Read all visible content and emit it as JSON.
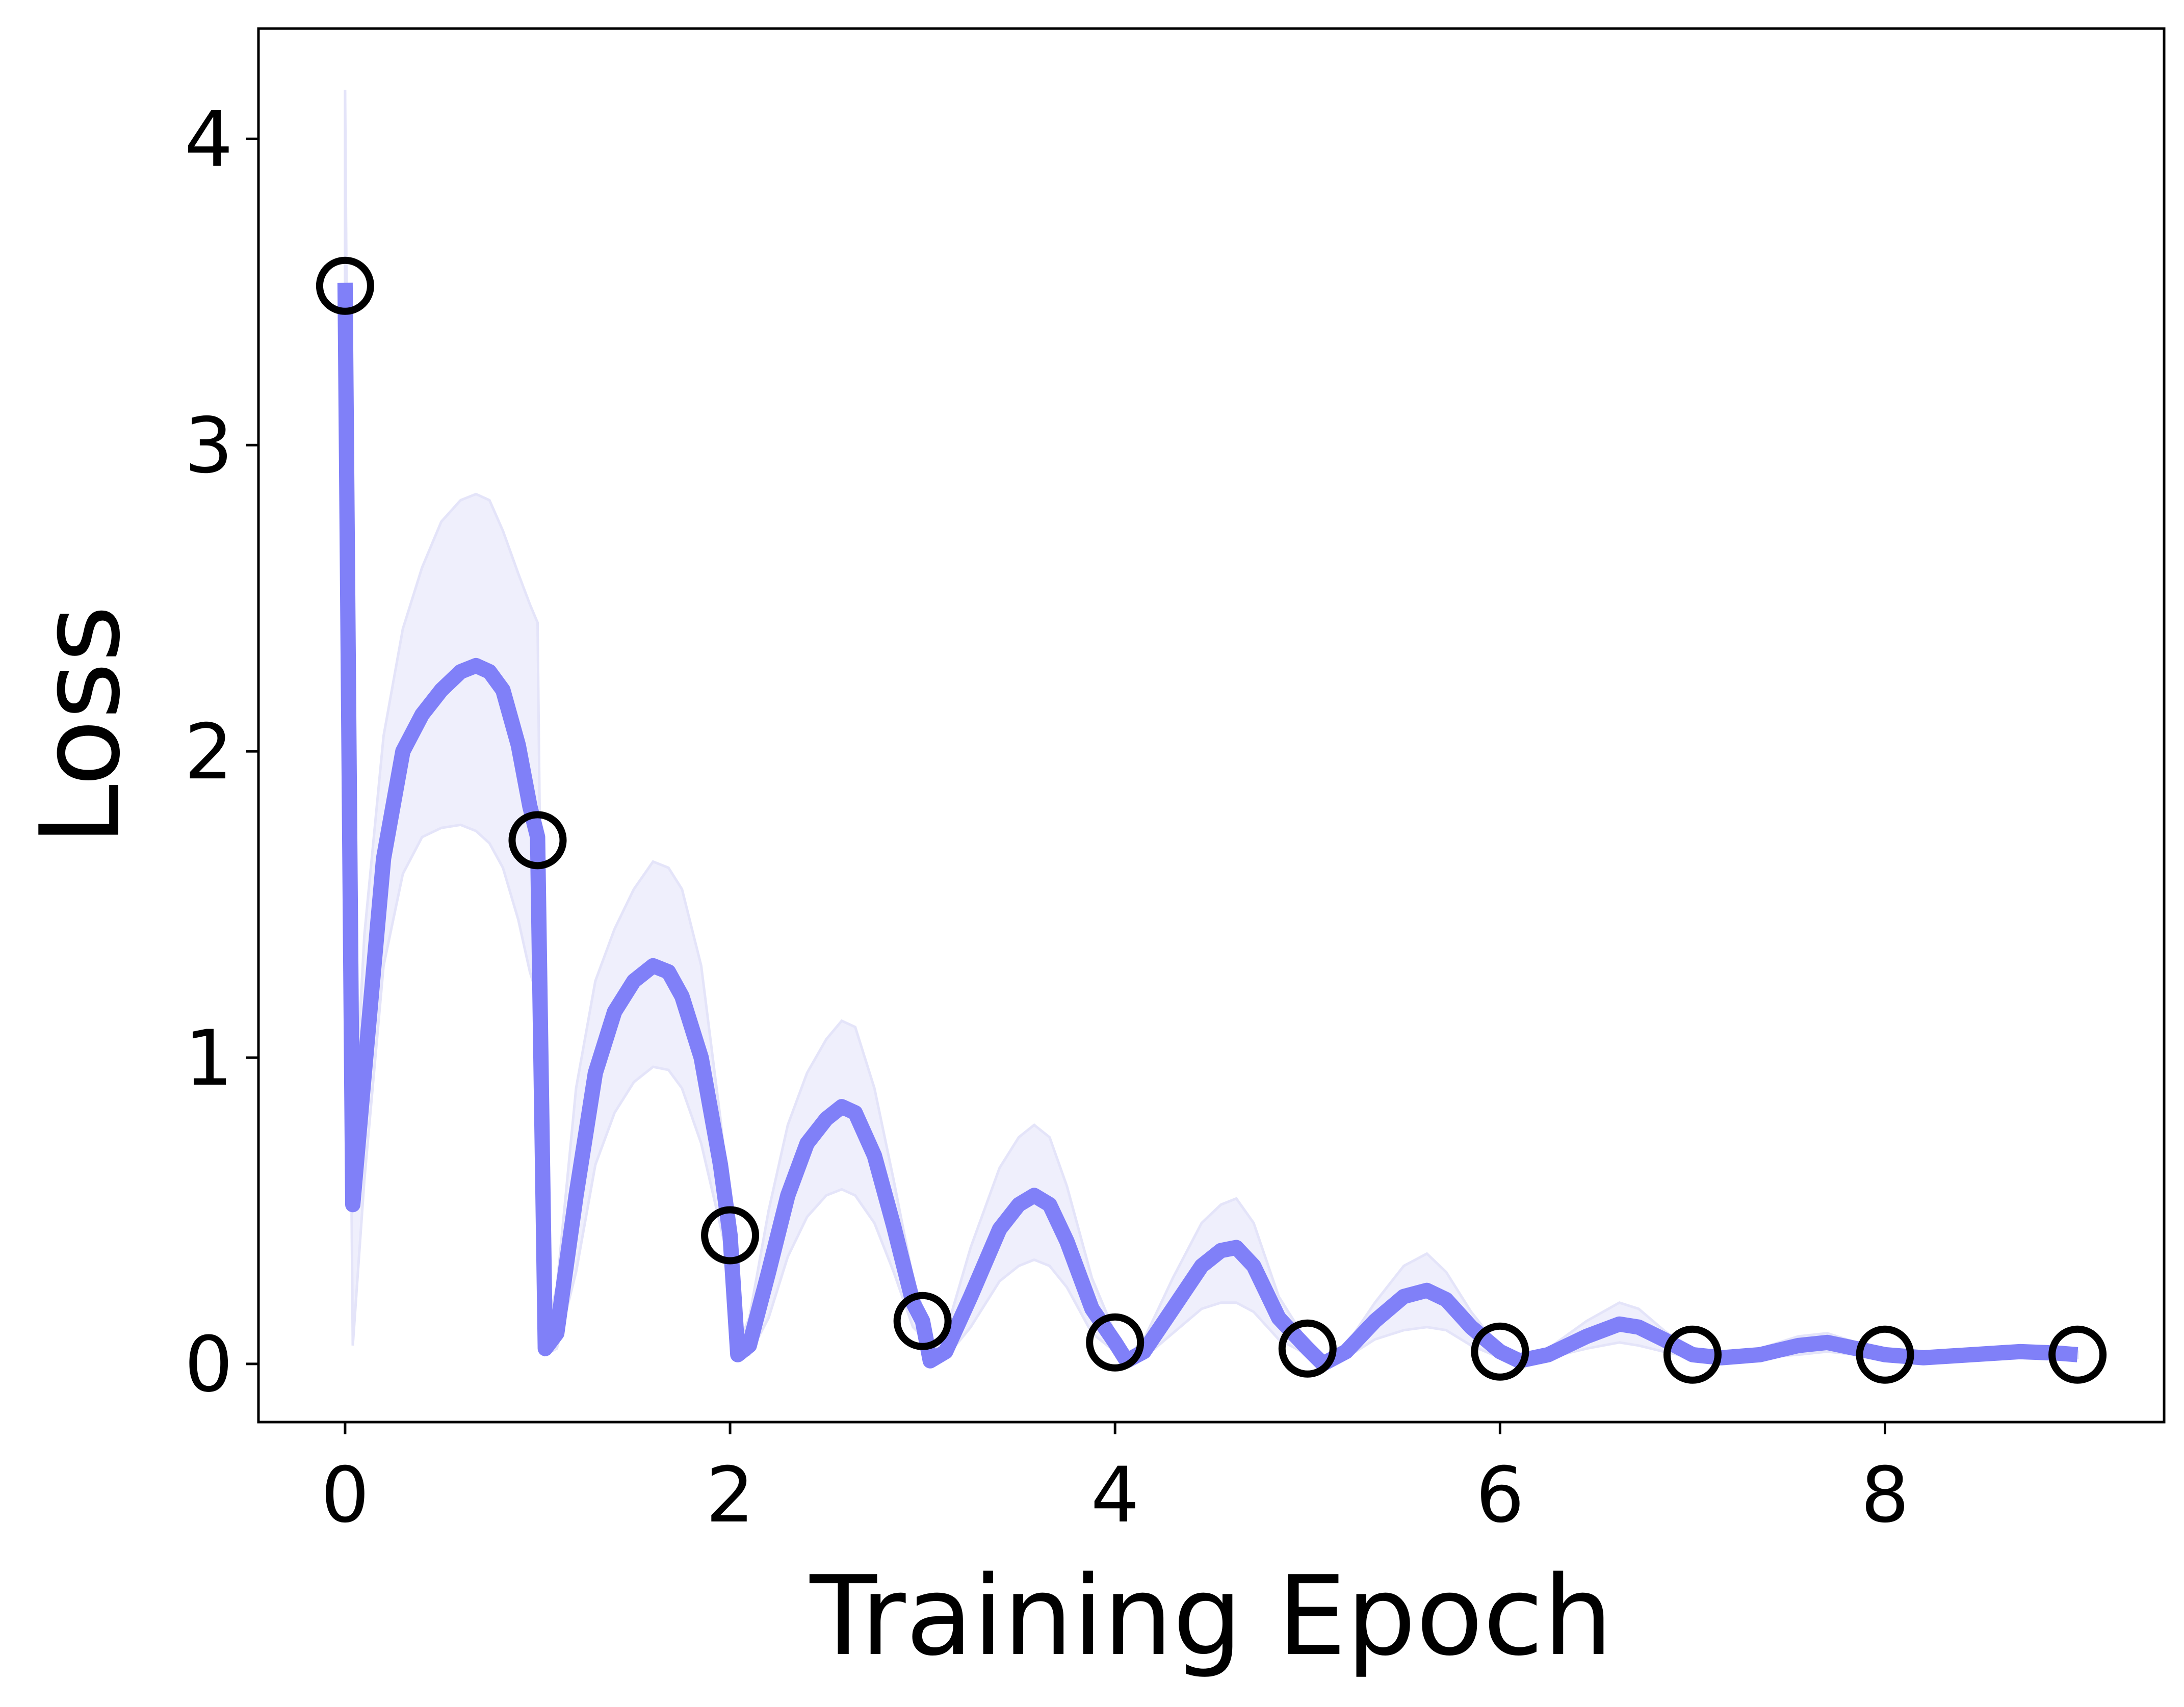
{
  "chart_data": {
    "type": "line",
    "title": "",
    "xlabel": "Training Epoch",
    "ylabel": "Loss",
    "xlim": [
      -0.45,
      9.45
    ],
    "ylim": [
      -0.19,
      4.36
    ],
    "xticks": [
      0,
      2,
      4,
      6,
      8
    ],
    "yticks": [
      0,
      1,
      2,
      3,
      4
    ],
    "grid": false,
    "legend": "none",
    "colors": {
      "line": "#8080f8",
      "band": "#efeffc",
      "band_edge": "#e4e4f9",
      "marker": "#000000"
    },
    "series": [
      {
        "values_mean": [
          [
            0.0,
            3.53
          ],
          [
            0.04,
            0.52
          ],
          [
            0.1,
            0.95
          ],
          [
            0.2,
            1.65
          ],
          [
            0.3,
            2.0
          ],
          [
            0.4,
            2.12
          ],
          [
            0.5,
            2.2
          ],
          [
            0.6,
            2.26
          ],
          [
            0.68,
            2.28
          ],
          [
            0.75,
            2.26
          ],
          [
            0.82,
            2.2
          ],
          [
            0.9,
            2.02
          ],
          [
            0.96,
            1.82
          ],
          [
            1.0,
            1.72
          ],
          [
            1.04,
            0.05
          ],
          [
            1.1,
            0.1
          ],
          [
            1.2,
            0.55
          ],
          [
            1.3,
            0.95
          ],
          [
            1.4,
            1.15
          ],
          [
            1.5,
            1.25
          ],
          [
            1.6,
            1.3
          ],
          [
            1.68,
            1.28
          ],
          [
            1.75,
            1.2
          ],
          [
            1.85,
            1.0
          ],
          [
            1.95,
            0.65
          ],
          [
            2.0,
            0.42
          ],
          [
            2.04,
            0.03
          ],
          [
            2.1,
            0.06
          ],
          [
            2.2,
            0.3
          ],
          [
            2.3,
            0.55
          ],
          [
            2.4,
            0.72
          ],
          [
            2.5,
            0.8
          ],
          [
            2.58,
            0.84
          ],
          [
            2.65,
            0.82
          ],
          [
            2.75,
            0.68
          ],
          [
            2.85,
            0.45
          ],
          [
            2.95,
            0.2
          ],
          [
            3.0,
            0.14
          ],
          [
            3.04,
            0.01
          ],
          [
            3.12,
            0.04
          ],
          [
            3.25,
            0.22
          ],
          [
            3.4,
            0.44
          ],
          [
            3.5,
            0.52
          ],
          [
            3.58,
            0.55
          ],
          [
            3.66,
            0.52
          ],
          [
            3.75,
            0.4
          ],
          [
            3.88,
            0.18
          ],
          [
            4.0,
            0.07
          ],
          [
            4.06,
            0.01
          ],
          [
            4.15,
            0.04
          ],
          [
            4.3,
            0.18
          ],
          [
            4.45,
            0.32
          ],
          [
            4.55,
            0.37
          ],
          [
            4.63,
            0.38
          ],
          [
            4.72,
            0.32
          ],
          [
            4.85,
            0.15
          ],
          [
            5.0,
            0.05
          ],
          [
            5.08,
            0.0
          ],
          [
            5.2,
            0.04
          ],
          [
            5.35,
            0.14
          ],
          [
            5.5,
            0.22
          ],
          [
            5.62,
            0.24
          ],
          [
            5.72,
            0.21
          ],
          [
            5.85,
            0.12
          ],
          [
            6.0,
            0.04
          ],
          [
            6.1,
            0.01
          ],
          [
            6.25,
            0.03
          ],
          [
            6.45,
            0.09
          ],
          [
            6.62,
            0.13
          ],
          [
            6.72,
            0.12
          ],
          [
            6.85,
            0.08
          ],
          [
            7.0,
            0.03
          ],
          [
            7.15,
            0.02
          ],
          [
            7.35,
            0.03
          ],
          [
            7.55,
            0.06
          ],
          [
            7.7,
            0.07
          ],
          [
            7.85,
            0.05
          ],
          [
            8.0,
            0.03
          ],
          [
            8.2,
            0.02
          ],
          [
            8.45,
            0.03
          ],
          [
            8.7,
            0.04
          ],
          [
            8.9,
            0.035
          ],
          [
            9.0,
            0.03
          ]
        ],
        "band_upper": [
          [
            0.0,
            4.16
          ],
          [
            0.04,
            0.7
          ],
          [
            0.1,
            1.4
          ],
          [
            0.2,
            2.05
          ],
          [
            0.3,
            2.4
          ],
          [
            0.4,
            2.6
          ],
          [
            0.5,
            2.75
          ],
          [
            0.6,
            2.82
          ],
          [
            0.68,
            2.84
          ],
          [
            0.75,
            2.82
          ],
          [
            0.82,
            2.72
          ],
          [
            0.9,
            2.58
          ],
          [
            0.96,
            2.48
          ],
          [
            1.0,
            2.42
          ],
          [
            1.04,
            0.1
          ],
          [
            1.1,
            0.25
          ],
          [
            1.2,
            0.9
          ],
          [
            1.3,
            1.25
          ],
          [
            1.4,
            1.42
          ],
          [
            1.5,
            1.55
          ],
          [
            1.6,
            1.64
          ],
          [
            1.68,
            1.62
          ],
          [
            1.75,
            1.55
          ],
          [
            1.85,
            1.3
          ],
          [
            1.95,
            0.8
          ],
          [
            2.0,
            0.5
          ],
          [
            2.04,
            0.06
          ],
          [
            2.1,
            0.15
          ],
          [
            2.2,
            0.5
          ],
          [
            2.3,
            0.78
          ],
          [
            2.4,
            0.95
          ],
          [
            2.5,
            1.06
          ],
          [
            2.58,
            1.12
          ],
          [
            2.65,
            1.1
          ],
          [
            2.75,
            0.9
          ],
          [
            2.85,
            0.6
          ],
          [
            2.95,
            0.28
          ],
          [
            3.0,
            0.18
          ],
          [
            3.04,
            0.03
          ],
          [
            3.12,
            0.1
          ],
          [
            3.25,
            0.38
          ],
          [
            3.4,
            0.64
          ],
          [
            3.5,
            0.74
          ],
          [
            3.58,
            0.78
          ],
          [
            3.66,
            0.74
          ],
          [
            3.75,
            0.58
          ],
          [
            3.88,
            0.28
          ],
          [
            4.0,
            0.1
          ],
          [
            4.06,
            0.02
          ],
          [
            4.15,
            0.08
          ],
          [
            4.3,
            0.28
          ],
          [
            4.45,
            0.46
          ],
          [
            4.55,
            0.52
          ],
          [
            4.63,
            0.54
          ],
          [
            4.72,
            0.46
          ],
          [
            4.85,
            0.22
          ],
          [
            5.0,
            0.07
          ],
          [
            5.08,
            0.01
          ],
          [
            5.2,
            0.06
          ],
          [
            5.35,
            0.2
          ],
          [
            5.5,
            0.32
          ],
          [
            5.62,
            0.36
          ],
          [
            5.72,
            0.3
          ],
          [
            5.85,
            0.17
          ],
          [
            6.0,
            0.05
          ],
          [
            6.1,
            0.02
          ],
          [
            6.25,
            0.05
          ],
          [
            6.45,
            0.14
          ],
          [
            6.62,
            0.2
          ],
          [
            6.72,
            0.18
          ],
          [
            6.85,
            0.11
          ],
          [
            7.0,
            0.04
          ],
          [
            7.15,
            0.03
          ],
          [
            7.35,
            0.05
          ],
          [
            7.55,
            0.09
          ],
          [
            7.7,
            0.1
          ],
          [
            7.85,
            0.07
          ],
          [
            8.0,
            0.04
          ],
          [
            8.2,
            0.03
          ],
          [
            8.45,
            0.04
          ],
          [
            8.7,
            0.05
          ],
          [
            8.9,
            0.045
          ],
          [
            9.0,
            0.04
          ]
        ],
        "band_lower": [
          [
            0.0,
            2.9
          ],
          [
            0.04,
            0.06
          ],
          [
            0.1,
            0.6
          ],
          [
            0.2,
            1.3
          ],
          [
            0.3,
            1.6
          ],
          [
            0.4,
            1.72
          ],
          [
            0.5,
            1.75
          ],
          [
            0.6,
            1.76
          ],
          [
            0.68,
            1.74
          ],
          [
            0.75,
            1.7
          ],
          [
            0.82,
            1.62
          ],
          [
            0.9,
            1.45
          ],
          [
            0.96,
            1.28
          ],
          [
            1.0,
            1.2
          ],
          [
            1.04,
            0.03
          ],
          [
            1.1,
            0.05
          ],
          [
            1.2,
            0.3
          ],
          [
            1.3,
            0.65
          ],
          [
            1.4,
            0.82
          ],
          [
            1.5,
            0.92
          ],
          [
            1.6,
            0.97
          ],
          [
            1.68,
            0.96
          ],
          [
            1.75,
            0.9
          ],
          [
            1.85,
            0.72
          ],
          [
            1.95,
            0.45
          ],
          [
            2.0,
            0.32
          ],
          [
            2.04,
            0.02
          ],
          [
            2.1,
            0.03
          ],
          [
            2.2,
            0.15
          ],
          [
            2.3,
            0.35
          ],
          [
            2.4,
            0.48
          ],
          [
            2.5,
            0.55
          ],
          [
            2.58,
            0.57
          ],
          [
            2.65,
            0.55
          ],
          [
            2.75,
            0.46
          ],
          [
            2.85,
            0.3
          ],
          [
            2.95,
            0.12
          ],
          [
            3.0,
            0.09
          ],
          [
            3.04,
            0.005
          ],
          [
            3.12,
            0.02
          ],
          [
            3.25,
            0.12
          ],
          [
            3.4,
            0.27
          ],
          [
            3.5,
            0.32
          ],
          [
            3.58,
            0.34
          ],
          [
            3.66,
            0.32
          ],
          [
            3.75,
            0.25
          ],
          [
            3.88,
            0.1
          ],
          [
            4.0,
            0.04
          ],
          [
            4.06,
            0.005
          ],
          [
            4.15,
            0.02
          ],
          [
            4.3,
            0.1
          ],
          [
            4.45,
            0.18
          ],
          [
            4.55,
            0.2
          ],
          [
            4.63,
            0.2
          ],
          [
            4.72,
            0.17
          ],
          [
            4.85,
            0.08
          ],
          [
            5.0,
            0.03
          ],
          [
            5.08,
            0.0
          ],
          [
            5.2,
            0.02
          ],
          [
            5.35,
            0.08
          ],
          [
            5.5,
            0.11
          ],
          [
            5.62,
            0.12
          ],
          [
            5.72,
            0.11
          ],
          [
            5.85,
            0.06
          ],
          [
            6.0,
            0.02
          ],
          [
            6.1,
            0.005
          ],
          [
            6.25,
            0.02
          ],
          [
            6.45,
            0.05
          ],
          [
            6.62,
            0.07
          ],
          [
            6.72,
            0.06
          ],
          [
            6.85,
            0.04
          ],
          [
            7.0,
            0.02
          ],
          [
            7.15,
            0.01
          ],
          [
            7.35,
            0.02
          ],
          [
            7.55,
            0.03
          ],
          [
            7.7,
            0.04
          ],
          [
            7.85,
            0.03
          ],
          [
            8.0,
            0.02
          ],
          [
            8.2,
            0.01
          ],
          [
            8.45,
            0.02
          ],
          [
            8.7,
            0.03
          ],
          [
            8.9,
            0.025
          ],
          [
            9.0,
            0.02
          ]
        ]
      }
    ],
    "markers": [
      {
        "x": 0,
        "y": 3.52
      },
      {
        "x": 1,
        "y": 1.71
      },
      {
        "x": 2,
        "y": 0.42
      },
      {
        "x": 3,
        "y": 0.14
      },
      {
        "x": 4,
        "y": 0.07
      },
      {
        "x": 5,
        "y": 0.05
      },
      {
        "x": 6,
        "y": 0.04
      },
      {
        "x": 7,
        "y": 0.03
      },
      {
        "x": 8,
        "y": 0.03
      },
      {
        "x": 9,
        "y": 0.03
      }
    ]
  }
}
